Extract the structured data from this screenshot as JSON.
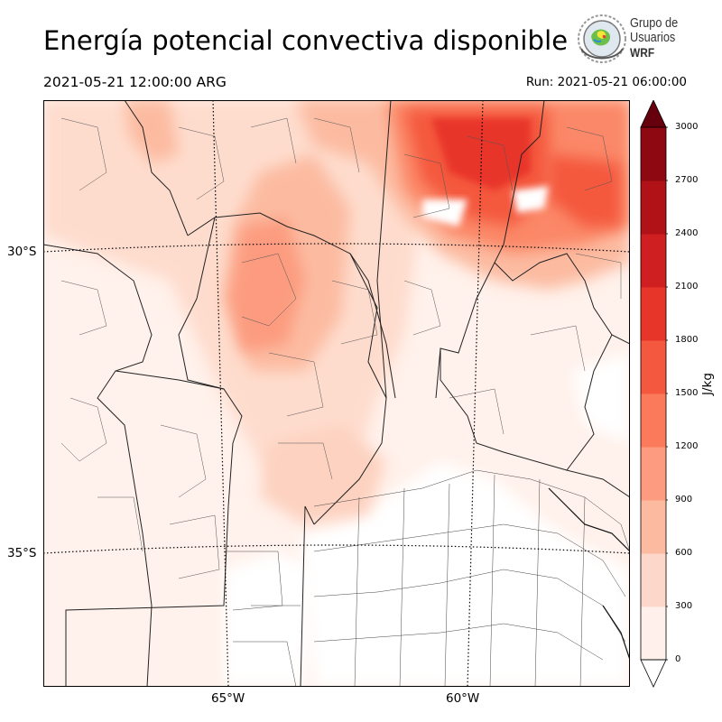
{
  "header": {
    "title": "Energía potencial convectiva disponible",
    "valid_time": "2021-05-21 12:00:00 ARG",
    "run_time": "Run: 2021-05-21 06:00:00"
  },
  "logo": {
    "line1": "Grupo de",
    "line2": "Usuarios",
    "line3": "WRF"
  },
  "map": {
    "lat_labels": [
      "30°S",
      "35°S"
    ],
    "lon_labels": [
      "65°W",
      "60°W"
    ]
  },
  "colorbar": {
    "unit": "J/kg",
    "ticks": [
      "0",
      "300",
      "600",
      "900",
      "1200",
      "1500",
      "1800",
      "2100",
      "2400",
      "2700",
      "3000"
    ],
    "colors": [
      "#fff0eb",
      "#fdd8ca",
      "#fcbba1",
      "#fc9b7f",
      "#fb7a5b",
      "#f4583e",
      "#e83529",
      "#d01f21",
      "#b01217",
      "#8e0811",
      "#67000d"
    ],
    "extend": "both"
  }
}
